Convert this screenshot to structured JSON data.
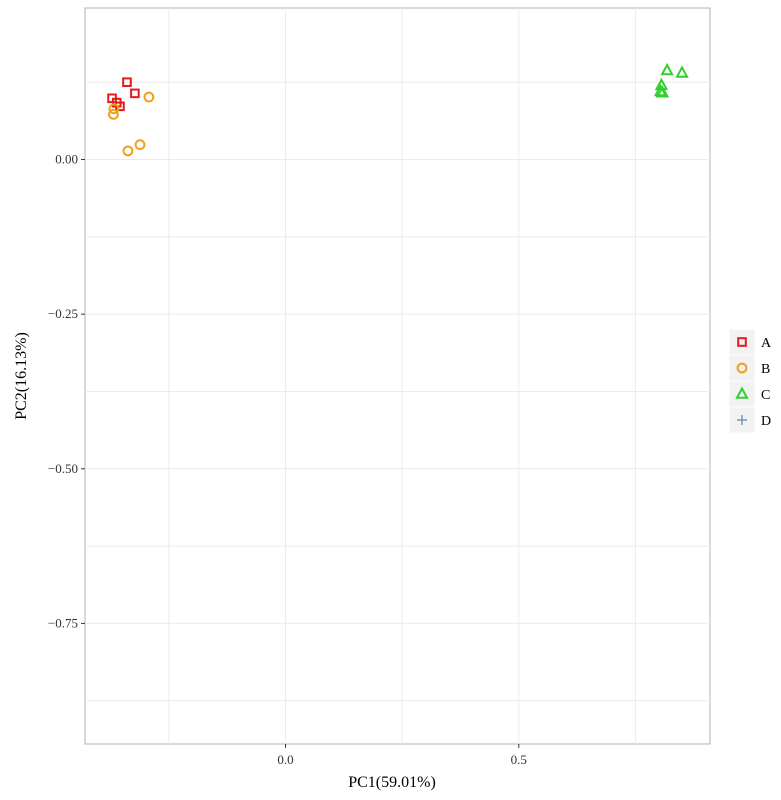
{
  "chart_data": {
    "type": "scatter",
    "title": "",
    "xlabel": "PC1(59.01%)",
    "ylabel": "PC2(16.13%)",
    "xlim": [
      -0.43,
      0.91
    ],
    "ylim": [
      -0.945,
      0.245
    ],
    "x_ticks": [
      {
        "value": 0.0,
        "label": "0.0"
      },
      {
        "value": 0.5,
        "label": "0.5"
      }
    ],
    "y_ticks": [
      {
        "value": 0.0,
        "label": "0.00"
      },
      {
        "value": -0.25,
        "label": "−0.25"
      },
      {
        "value": -0.5,
        "label": "−0.50"
      },
      {
        "value": -0.75,
        "label": "−0.75"
      }
    ],
    "grid": true,
    "legend_position": "right",
    "series": [
      {
        "name": "A",
        "shape": "square",
        "color": "#E41A1C",
        "points": [
          [
            -0.372,
            0.099
          ],
          [
            -0.34,
            0.125
          ],
          [
            -0.323,
            0.107
          ],
          [
            -0.362,
            0.092
          ],
          [
            -0.355,
            0.086
          ]
        ]
      },
      {
        "name": "B",
        "shape": "circle",
        "color": "#F0A01A",
        "points": [
          [
            -0.368,
            0.082
          ],
          [
            -0.369,
            0.073
          ],
          [
            -0.293,
            0.101
          ],
          [
            -0.338,
            0.014
          ],
          [
            -0.312,
            0.024
          ]
        ]
      },
      {
        "name": "C",
        "shape": "triangle",
        "color": "#2FCF2F",
        "points": [
          [
            0.818,
            0.144
          ],
          [
            0.85,
            0.14
          ],
          [
            0.806,
            0.12
          ],
          [
            0.804,
            0.11
          ],
          [
            0.808,
            0.108
          ]
        ]
      },
      {
        "name": "D",
        "shape": "plus",
        "color": "#7B95B9",
        "points": []
      }
    ]
  }
}
